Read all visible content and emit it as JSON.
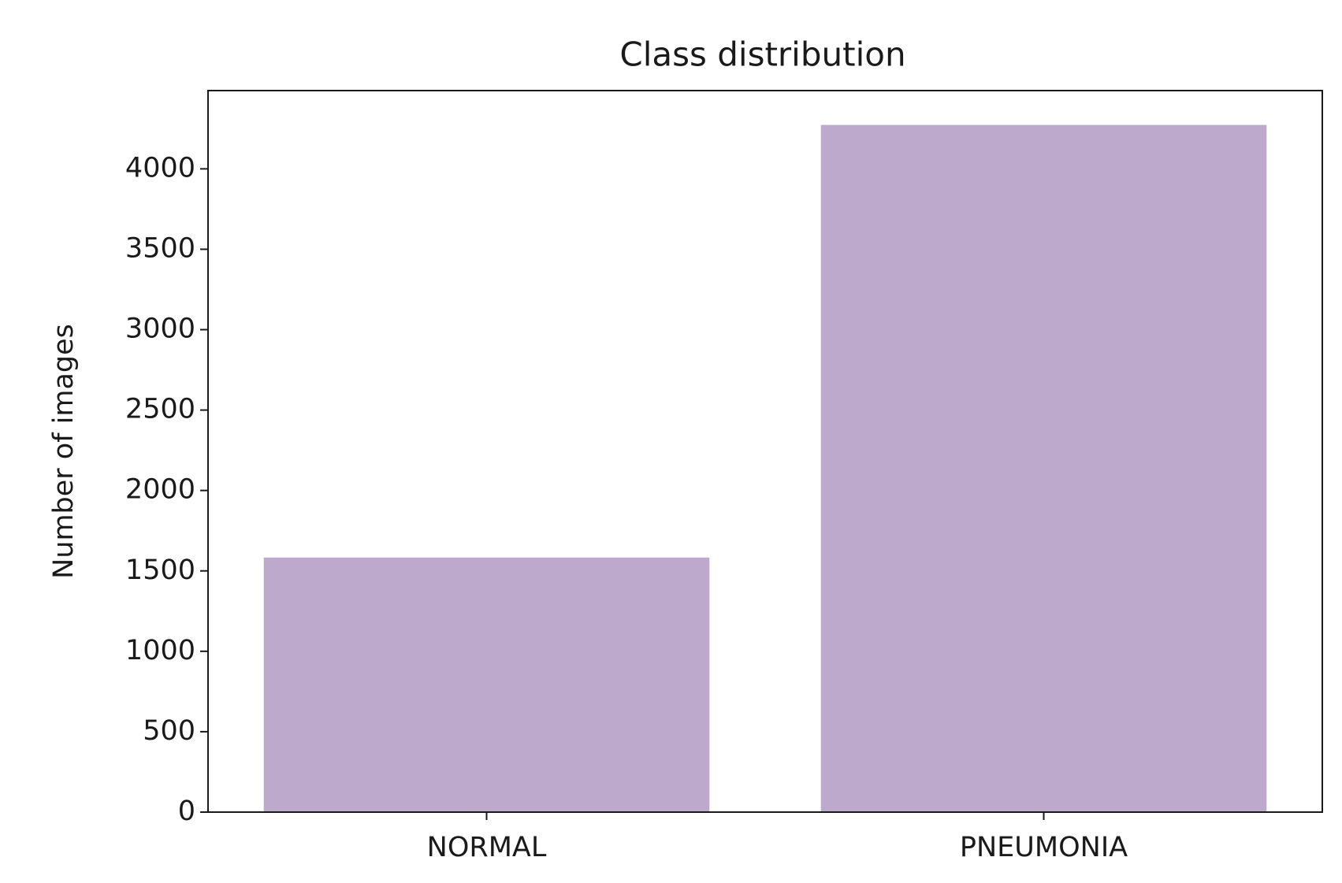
{
  "chart_data": {
    "type": "bar",
    "title": "Class distribution",
    "y_label": "Number of images",
    "categories": [
      "NORMAL",
      "PNEUMONIA"
    ],
    "values": [
      1583,
      4273
    ],
    "color": "#bda9cb",
    "ylim": [
      0,
      4486.65
    ],
    "yticks": [
      0,
      500,
      1000,
      1500,
      2000,
      2500,
      3000,
      3500,
      4000
    ],
    "grid": false
  }
}
